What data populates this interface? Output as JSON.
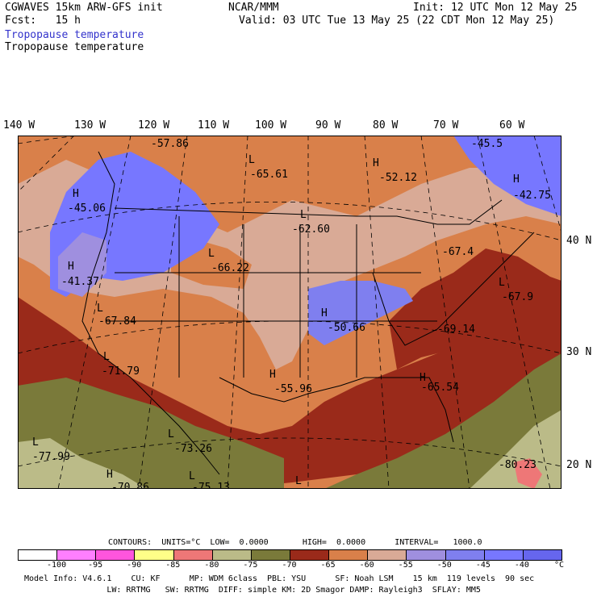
{
  "header": {
    "model_line": "CGWAVES 15km ARW-GFS init",
    "fcst_line": "Fcst:   15 h",
    "center": "NCAR/MMM",
    "init": "Init: 12 UTC Mon 12 May 25",
    "valid": "Valid: 03 UTC Tue 13 May 25 (22 CDT Mon 12 May 25)",
    "field_title_colored": "Tropopause temperature",
    "field_title": "Tropopause temperature",
    "field_title_color": "#3333cc"
  },
  "longitude_labels": [
    "140 W",
    "130 W",
    "120 W",
    "110 W",
    "100 W",
    "90 W",
    "80 W",
    "70 W",
    "60 W"
  ],
  "latitude_labels": [
    "40 N",
    "30 N",
    "20 N"
  ],
  "map_labels": [
    {
      "kind": "value",
      "text": "-57.86"
    },
    {
      "kind": "value",
      "text": "-45.5"
    },
    {
      "kind": "marker",
      "text": "L"
    },
    {
      "kind": "value",
      "text": "-65.61"
    },
    {
      "kind": "marker",
      "text": "H"
    },
    {
      "kind": "value",
      "text": "-52.12"
    },
    {
      "kind": "marker",
      "text": "H"
    },
    {
      "kind": "value",
      "text": "-42.75"
    },
    {
      "kind": "marker",
      "text": "H"
    },
    {
      "kind": "value",
      "text": "-45.06"
    },
    {
      "kind": "marker",
      "text": "L"
    },
    {
      "kind": "value",
      "text": "-62.60"
    },
    {
      "kind": "marker",
      "text": "L"
    },
    {
      "kind": "value",
      "text": "-66.22"
    },
    {
      "kind": "value",
      "text": "-67.4"
    },
    {
      "kind": "marker",
      "text": "H"
    },
    {
      "kind": "value",
      "text": "-41.37"
    },
    {
      "kind": "marker",
      "text": "L"
    },
    {
      "kind": "value",
      "text": "-67.9"
    },
    {
      "kind": "marker",
      "text": "L"
    },
    {
      "kind": "value",
      "text": "-67.84"
    },
    {
      "kind": "marker",
      "text": "H"
    },
    {
      "kind": "value",
      "text": "-50.66"
    },
    {
      "kind": "value",
      "text": "-69.14"
    },
    {
      "kind": "marker",
      "text": "L"
    },
    {
      "kind": "value",
      "text": "-71.79"
    },
    {
      "kind": "marker",
      "text": "H"
    },
    {
      "kind": "value",
      "text": "-55.96"
    },
    {
      "kind": "marker",
      "text": "H"
    },
    {
      "kind": "value",
      "text": "-65.54"
    },
    {
      "kind": "marker",
      "text": "L"
    },
    {
      "kind": "value",
      "text": "-73.26"
    },
    {
      "kind": "marker",
      "text": "L"
    },
    {
      "kind": "value",
      "text": "-77.99"
    },
    {
      "kind": "value",
      "text": "-80.23"
    },
    {
      "kind": "marker",
      "text": "H"
    },
    {
      "kind": "value",
      "text": "-70.86"
    },
    {
      "kind": "marker",
      "text": "L"
    },
    {
      "kind": "value",
      "text": "-75.13"
    },
    {
      "kind": "marker",
      "text": "L"
    }
  ],
  "colors": {
    "lt_-100": "#ffffff",
    "-100_-95": "#ff7fff",
    "-95_-90": "#ff55dd",
    "-90_-85": "#ffff88",
    "-85_-80": "#ee7777",
    "-80_-75": "#bbbb88",
    "-75_-70": "#7a7a3a",
    "-70_-65": "#9a2a1a",
    "-65_-60": "#d9804a",
    "-60_-55": "#d9aa96",
    "-55_-50": "#9f8fdf",
    "-50_-45": "#7f7fef",
    "-45_-40": "#7777ff",
    "gt_-40": "#6666ee"
  },
  "contour_info": "CONTOURS:  UNITS=°C  LOW=  0.0000       HIGH=  0.0000      INTERVAL=   1000.0",
  "colorbar": {
    "colors": [
      "#ffffff",
      "#ff7fff",
      "#ff55dd",
      "#ffff88",
      "#ee7777",
      "#bbbb88",
      "#7a7a3a",
      "#9a2a1a",
      "#d9804a",
      "#d9aa96",
      "#9f8fdf",
      "#7f7fef",
      "#7777ff",
      "#6666ee"
    ],
    "ticks": [
      "-100",
      "-95",
      "-90",
      "-85",
      "-80",
      "-75",
      "-70",
      "-65",
      "-60",
      "-55",
      "-50",
      "-45",
      "-40"
    ],
    "unit": "°C"
  },
  "footer": {
    "line1": "Model Info: V4.6.1    CU: KF      MP: WDM 6class  PBL: YSU      SF: Noah LSM    15 km  119 levels  90 sec",
    "line2": "                 LW: RRTMG   SW: RRTMG  DIFF: simple KM: 2D Smagor DAMP: Rayleigh3  SFLAY: MM5"
  }
}
